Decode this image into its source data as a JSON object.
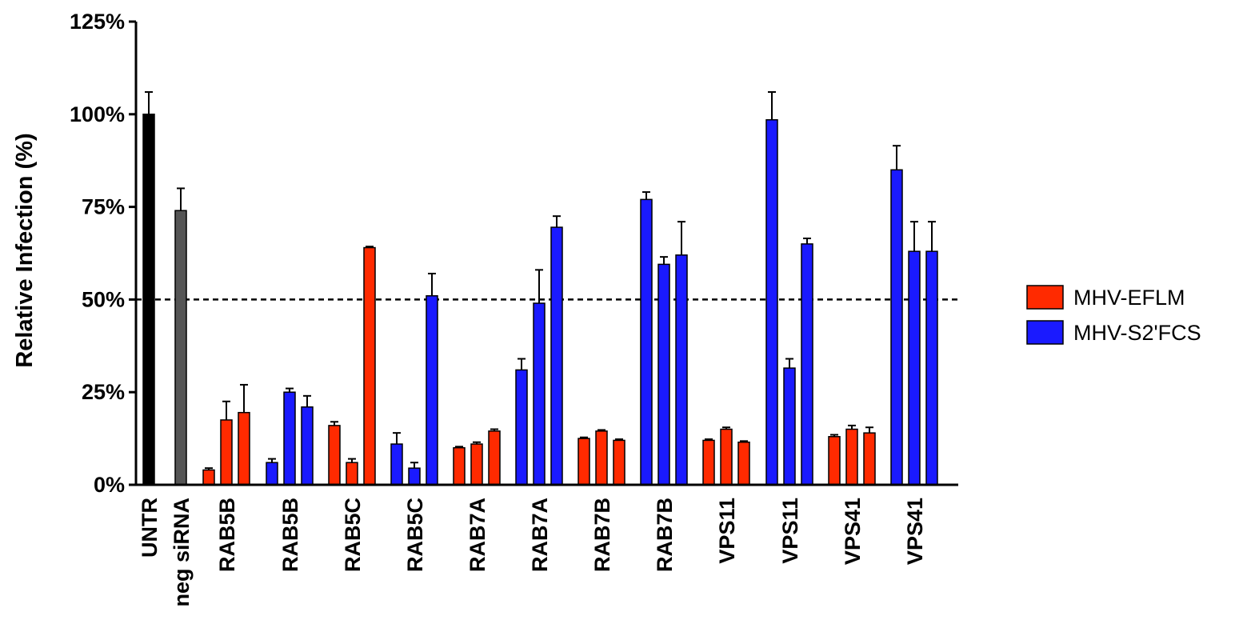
{
  "chart_data": {
    "type": "bar",
    "ylabel": "Relative Infection (%)",
    "xlabel": "",
    "ylim": [
      0,
      125
    ],
    "yticks": [
      0,
      25,
      50,
      75,
      100,
      125
    ],
    "ytick_labels": [
      "0%",
      "25%",
      "50%",
      "75%",
      "100%",
      "125%"
    ],
    "reference_line": 50,
    "legend": {
      "placement": "right",
      "entries": [
        {
          "name": "MHV-EFLM",
          "color": "#ff2a00"
        },
        {
          "name": "MHV-S2'FCS",
          "color": "#1a1aff"
        }
      ]
    },
    "colors": {
      "control": "#000000",
      "neg": "#555555",
      "MHV-EFLM": "#ff2a00",
      "MHV-S2'FCS": "#1a1aff"
    },
    "groups": [
      {
        "label": "UNTR",
        "series": "control",
        "bars": [
          {
            "value": 100,
            "error": 6
          }
        ]
      },
      {
        "label": "neg siRNA",
        "series": "neg",
        "bars": [
          {
            "value": 74,
            "error": 6
          }
        ]
      },
      {
        "label": "RAB5B",
        "series": "MHV-EFLM",
        "bars": [
          {
            "value": 4,
            "error": 0.5
          },
          {
            "value": 17.5,
            "error": 5
          },
          {
            "value": 19.5,
            "error": 7.5
          }
        ]
      },
      {
        "label": "RAB5B",
        "series": "MHV-S2'FCS",
        "bars": [
          {
            "value": 6,
            "error": 1
          },
          {
            "value": 25,
            "error": 1
          },
          {
            "value": 21,
            "error": 3
          }
        ]
      },
      {
        "label": "RAB5C",
        "series": "MHV-EFLM",
        "bars": [
          {
            "value": 16,
            "error": 1
          },
          {
            "value": 6,
            "error": 1
          },
          {
            "value": 64,
            "error": 0.3
          }
        ]
      },
      {
        "label": "RAB5C",
        "series": "MHV-S2'FCS",
        "bars": [
          {
            "value": 11,
            "error": 3
          },
          {
            "value": 4.5,
            "error": 1.5
          },
          {
            "value": 51,
            "error": 6
          }
        ]
      },
      {
        "label": "RAB7A",
        "series": "MHV-EFLM",
        "bars": [
          {
            "value": 10,
            "error": 0.3
          },
          {
            "value": 11,
            "error": 0.5
          },
          {
            "value": 14.5,
            "error": 0.5
          }
        ]
      },
      {
        "label": "RAB7A",
        "series": "MHV-S2'FCS",
        "bars": [
          {
            "value": 31,
            "error": 3
          },
          {
            "value": 49,
            "error": 9
          },
          {
            "value": 69.5,
            "error": 3
          }
        ]
      },
      {
        "label": "RAB7B",
        "series": "MHV-EFLM",
        "bars": [
          {
            "value": 12.5,
            "error": 0.3
          },
          {
            "value": 14.5,
            "error": 0.3
          },
          {
            "value": 12,
            "error": 0.3
          }
        ]
      },
      {
        "label": "RAB7B",
        "series": "MHV-S2'FCS",
        "bars": [
          {
            "value": 77,
            "error": 2
          },
          {
            "value": 59.5,
            "error": 2
          },
          {
            "value": 62,
            "error": 9
          }
        ]
      },
      {
        "label": "VPS11",
        "series": "MHV-EFLM",
        "bars": [
          {
            "value": 12,
            "error": 0.3
          },
          {
            "value": 15,
            "error": 0.5
          },
          {
            "value": 11.5,
            "error": 0.3
          }
        ]
      },
      {
        "label": "VPS11",
        "series": "MHV-S2'FCS",
        "bars": [
          {
            "value": 98.5,
            "error": 7.5
          },
          {
            "value": 31.5,
            "error": 2.5
          },
          {
            "value": 65,
            "error": 1.5
          }
        ]
      },
      {
        "label": "VPS41",
        "series": "MHV-EFLM",
        "bars": [
          {
            "value": 13,
            "error": 0.5
          },
          {
            "value": 15,
            "error": 1
          },
          {
            "value": 14,
            "error": 1.5
          }
        ]
      },
      {
        "label": "VPS41",
        "series": "MHV-S2'FCS",
        "bars": [
          {
            "value": 85,
            "error": 6.5
          },
          {
            "value": 63,
            "error": 8
          },
          {
            "value": 63,
            "error": 8
          }
        ]
      }
    ]
  }
}
